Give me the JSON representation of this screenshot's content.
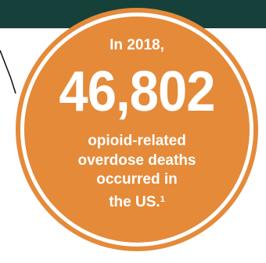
{
  "header_color": "#16403a",
  "accent_color": "#e58a39",
  "stat": {
    "intro": "In 2018,",
    "number": "46,802",
    "caption_lines": [
      "opioid-related",
      "overdose deaths",
      "occurred in",
      "the US."
    ],
    "footnote": "1"
  }
}
